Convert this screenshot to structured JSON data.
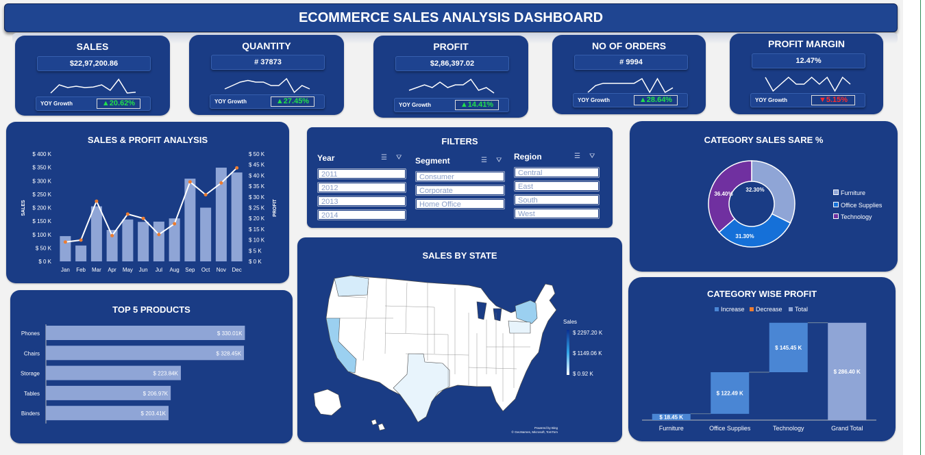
{
  "dashboard": {
    "title": "ECOMMERCE SALES ANALYSIS DASHBOARD"
  },
  "kpis": [
    {
      "title": "SALES",
      "value": "$22,97,200.86",
      "yoy_label": "YOY Growth",
      "yoy_value": "20.62%",
      "direction": "up",
      "spark": [
        3,
        6,
        5,
        5.5,
        5,
        5.2,
        6,
        4,
        8,
        3,
        3.3
      ]
    },
    {
      "title": "QUANTITY",
      "value": "# 37873",
      "yoy_label": "YOY Growth",
      "yoy_value": "27.45%",
      "direction": "up",
      "spark": [
        4,
        5,
        6,
        6.5,
        6,
        6,
        5,
        5,
        7,
        3,
        5,
        4
      ]
    },
    {
      "title": "PROFIT",
      "value": "$2,86,397.02",
      "yoy_label": "YOY Growth",
      "yoy_value": "14.41%",
      "direction": "up",
      "spark": [
        4,
        5,
        6,
        5,
        7,
        5,
        6,
        6,
        8,
        4,
        5,
        3
      ]
    },
    {
      "title": "NO OF ORDERS",
      "value": "# 9994",
      "yoy_label": "YOY Growth",
      "yoy_value": "28.64%",
      "direction": "up",
      "spark": [
        3,
        4.5,
        5,
        5,
        5,
        5,
        5,
        6,
        3,
        6,
        3,
        4
      ]
    },
    {
      "title": "PROFIT MARGIN",
      "value": "12.47%",
      "yoy_label": "YOY Growth",
      "yoy_value": "5.15%",
      "direction": "down",
      "spark": [
        5,
        3,
        4,
        5,
        4,
        4,
        5,
        4,
        5,
        3,
        5,
        4
      ]
    }
  ],
  "chart_data": [
    {
      "id": "sales_profit",
      "type": "bar",
      "title": "SALES & PROFIT ANALYSIS",
      "categories": [
        "Jan",
        "Feb",
        "Mar",
        "Apr",
        "May",
        "Jun",
        "Jul",
        "Aug",
        "Sep",
        "Oct",
        "Nov",
        "Dec"
      ],
      "series": [
        {
          "name": "SALES",
          "type": "bar",
          "values": [
            94000,
            59000,
            205000,
            117000,
            156000,
            147000,
            148000,
            160000,
            308000,
            200000,
            349000,
            331000
          ]
        },
        {
          "name": "PROFIT",
          "type": "line",
          "values": [
            9000,
            9900,
            28000,
            12000,
            22000,
            20000,
            12500,
            17500,
            37000,
            31000,
            36500,
            43500
          ]
        }
      ],
      "ylabel": "SALES",
      "y2label": "PROFIT",
      "yticks": [
        "$ 0 K",
        "$ 50 K",
        "$ 100 K",
        "$ 150 K",
        "$ 200 K",
        "$ 250 K",
        "$ 300 K",
        "$ 350 K",
        "$ 400 K"
      ],
      "y2ticks": [
        "$ 0 K",
        "$ 5 K",
        "$ 10 K",
        "$ 15 K",
        "$ 20 K",
        "$ 25 K",
        "$ 30 K",
        "$ 35 K",
        "$ 40 K",
        "$ 45 K",
        "$ 50 K"
      ],
      "ylim": [
        0,
        400000
      ],
      "y2lim": [
        0,
        50000
      ],
      "colors": {
        "bar": "#8fa5d6",
        "line": "#ffffff",
        "marker": "#ed7d31"
      }
    },
    {
      "id": "category_share",
      "type": "pie",
      "title": "CATEGORY SALES SARE %",
      "labels": [
        "Furniture",
        "Office Supplies",
        "Technology"
      ],
      "values": [
        32.3,
        31.3,
        36.4
      ],
      "value_labels": [
        "32.30%",
        "31.30%",
        "36.40%"
      ],
      "colors": [
        "#8fa5d6",
        "#1570d8",
        "#7030a0"
      ]
    },
    {
      "id": "top_products",
      "type": "bar",
      "orientation": "horizontal",
      "title": "TOP 5 PRODUCTS",
      "categories": [
        "Phones",
        "Chairs",
        "Storage",
        "Tables",
        "Binders"
      ],
      "values": [
        330.01,
        328.45,
        223.84,
        206.97,
        203.41
      ],
      "value_labels": [
        "$ 330.01K",
        "$ 328.45K",
        "$ 223.84K",
        "$ 206.97K",
        "$ 203.41K"
      ],
      "xlim": [
        0,
        350
      ],
      "colors": {
        "bar": "#8fa5d6"
      }
    },
    {
      "id": "category_profit",
      "type": "bar",
      "subtype": "waterfall",
      "title": "CATEGORY WISE PROFIT",
      "categories": [
        "Furniture",
        "Office Supplies",
        "Technology",
        "Grand Total"
      ],
      "values": [
        18.45,
        122.49,
        145.45,
        286.4
      ],
      "value_labels": [
        "$ 18.45 K",
        "$ 122.49 K",
        "$ 145.45 K",
        "$ 286.40 K"
      ],
      "kinds": [
        "increase",
        "increase",
        "increase",
        "total"
      ],
      "legend": [
        "Increase",
        "Decrease",
        "Total"
      ],
      "legend_colors": [
        "#4a86d4",
        "#ed7d31",
        "#8fa5d6"
      ],
      "ylim": [
        0,
        300
      ]
    }
  ],
  "filters": {
    "title": "FILTERS",
    "groups": [
      {
        "label": "Year",
        "items": [
          "2011",
          "2012",
          "2013",
          "2014"
        ]
      },
      {
        "label": "Segment",
        "items": [
          "Consumer",
          "Corporate",
          "Home Office"
        ]
      },
      {
        "label": "Region",
        "items": [
          "Central",
          "East",
          "South",
          "West"
        ]
      }
    ]
  },
  "map": {
    "title": "SALES  BY STATE",
    "legend_title": "Sales",
    "legend_values": [
      "$ 2297.20 K",
      "$ 1149.06 K",
      "$ 0.92 K"
    ],
    "credit_1": "Powered by Bing",
    "credit_2": "© GeoNames, Microsoft, TomTom",
    "colors": {
      "high": "#1565c0",
      "mid": "#9bd0f0",
      "low": "#ffffff"
    }
  }
}
